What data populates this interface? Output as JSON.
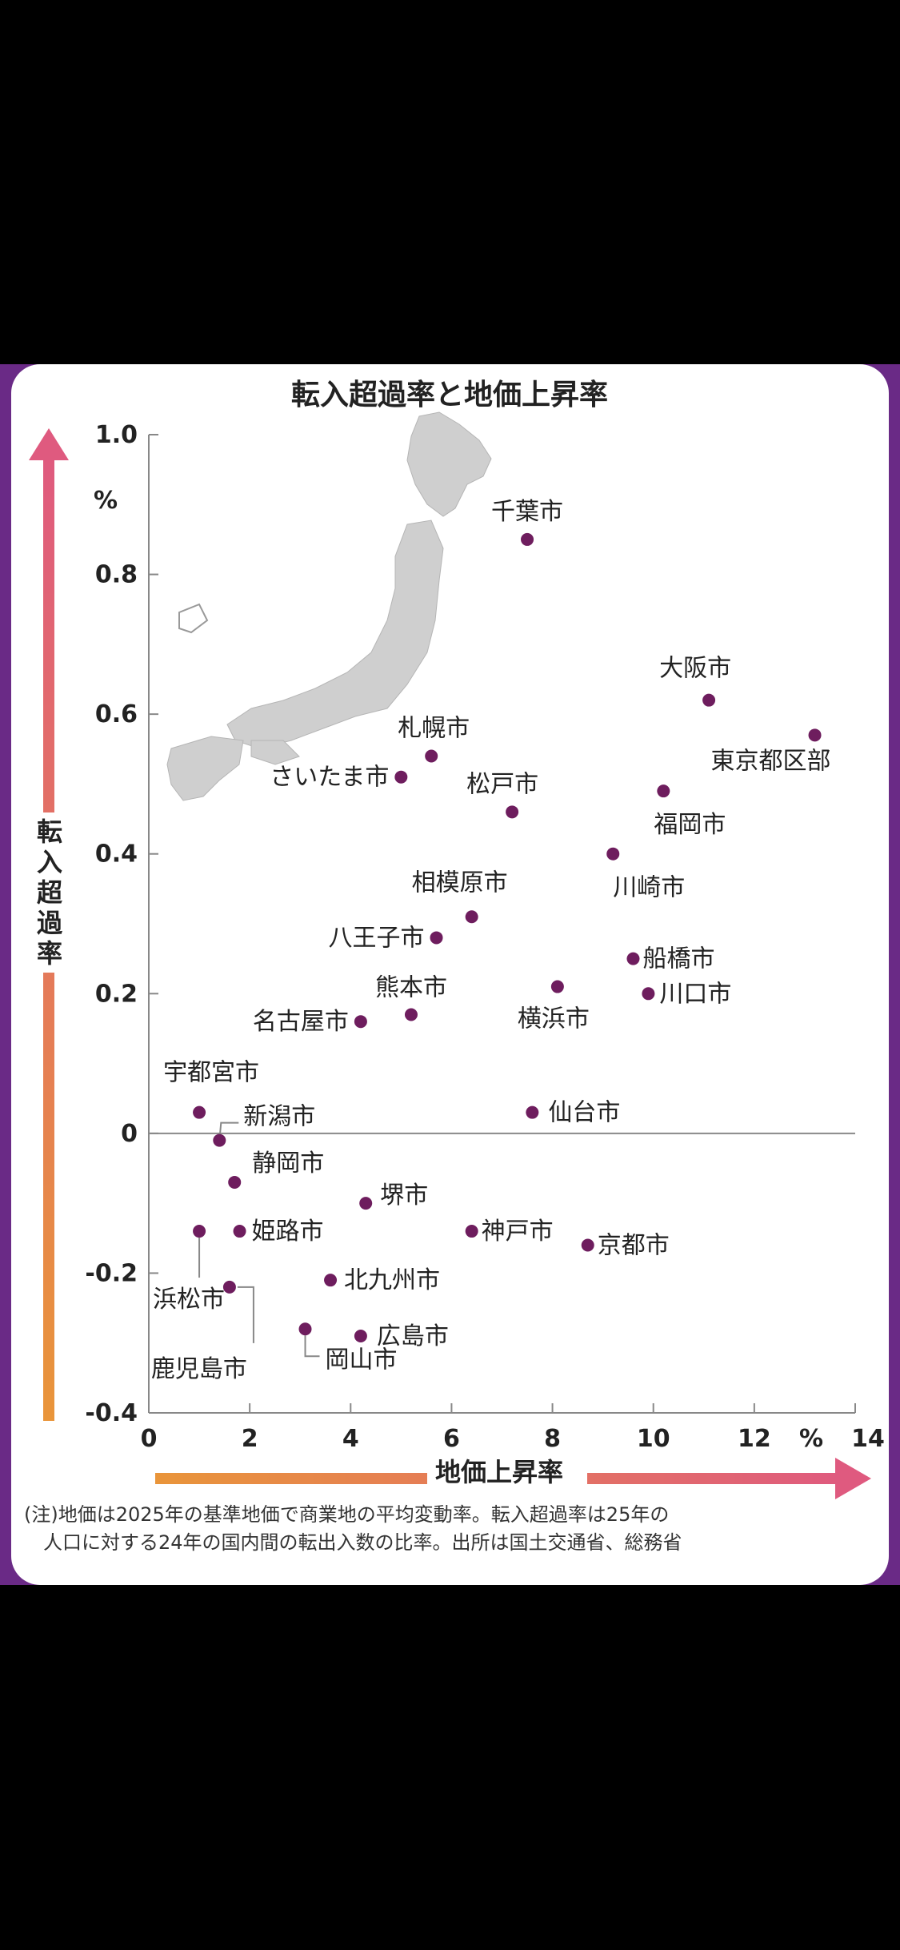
{
  "chart_data": {
    "type": "scatter",
    "title": "転入超過率と地価上昇率",
    "xlabel": "地価上昇率",
    "ylabel": "転入超過率",
    "x_unit": "%",
    "y_unit": "%",
    "xlim": [
      0,
      14
    ],
    "ylim": [
      -0.4,
      1.0
    ],
    "x_ticks": [
      "0",
      "2",
      "4",
      "6",
      "8",
      "10",
      "12",
      "14"
    ],
    "y_ticks": [
      "1.0",
      "0.8",
      "0.6",
      "0.4",
      "0.2",
      "0",
      "-0.2",
      "-0.4"
    ],
    "grid": false,
    "points": [
      {
        "name": "千葉市",
        "x": 7.5,
        "y": 0.85
      },
      {
        "name": "大阪市",
        "x": 11.1,
        "y": 0.62
      },
      {
        "name": "東京都区部",
        "x": 13.2,
        "y": 0.57
      },
      {
        "name": "札幌市",
        "x": 5.6,
        "y": 0.54
      },
      {
        "name": "さいたま市",
        "x": 5.0,
        "y": 0.51
      },
      {
        "name": "福岡市",
        "x": 10.2,
        "y": 0.49
      },
      {
        "name": "松戸市",
        "x": 7.2,
        "y": 0.46
      },
      {
        "name": "川崎市",
        "x": 9.2,
        "y": 0.4
      },
      {
        "name": "相模原市",
        "x": 6.4,
        "y": 0.31
      },
      {
        "name": "八王子市",
        "x": 5.7,
        "y": 0.28
      },
      {
        "name": "船橋市",
        "x": 9.6,
        "y": 0.25
      },
      {
        "name": "横浜市",
        "x": 8.1,
        "y": 0.21
      },
      {
        "name": "川口市",
        "x": 9.9,
        "y": 0.2
      },
      {
        "name": "熊本市",
        "x": 5.2,
        "y": 0.17
      },
      {
        "name": "名古屋市",
        "x": 4.2,
        "y": 0.16
      },
      {
        "name": "宇都宮市",
        "x": 1.0,
        "y": 0.03
      },
      {
        "name": "仙台市",
        "x": 7.6,
        "y": 0.03
      },
      {
        "name": "新潟市",
        "x": 1.4,
        "y": -0.01
      },
      {
        "name": "静岡市",
        "x": 1.7,
        "y": -0.07
      },
      {
        "name": "堺市",
        "x": 4.3,
        "y": -0.1
      },
      {
        "name": "浜松市",
        "x": 1.0,
        "y": -0.14
      },
      {
        "name": "姫路市",
        "x": 1.8,
        "y": -0.14
      },
      {
        "name": "神戸市",
        "x": 6.4,
        "y": -0.14
      },
      {
        "name": "京都市",
        "x": 8.7,
        "y": -0.16
      },
      {
        "name": "北九州市",
        "x": 3.6,
        "y": -0.21
      },
      {
        "name": "鹿児島市",
        "x": 1.6,
        "y": -0.22
      },
      {
        "name": "岡山市",
        "x": 3.1,
        "y": -0.28
      },
      {
        "name": "広島市",
        "x": 4.2,
        "y": -0.29
      }
    ],
    "point_color": "#6e1d5e",
    "arrow_colors": [
      "#e9953a",
      "#df5a7f"
    ]
  },
  "note": {
    "line1": "(注)地価は2025年の基準地価で商業地の平均変動率。転入超過率は25年の",
    "line2": "人口に対する24年の国内間の転出入数の比率。出所は国土交通省、総務省"
  }
}
